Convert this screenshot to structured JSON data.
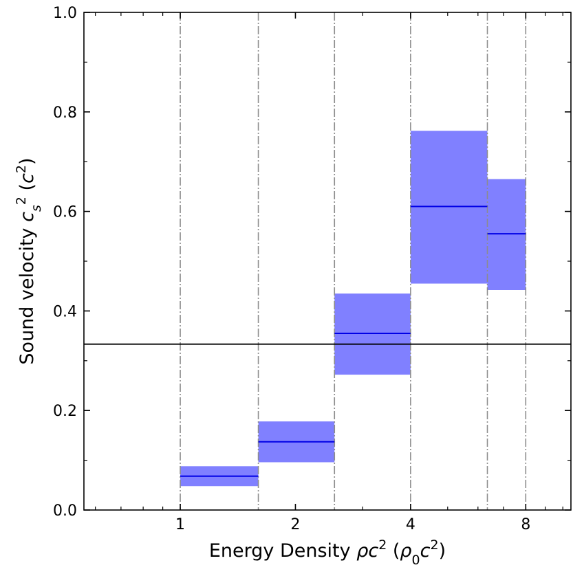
{
  "chart_data": {
    "type": "bar",
    "title": "",
    "xlabel": {
      "parts": [
        {
          "text": "Energy Density "
        },
        {
          "text": "ρc",
          "style": "italic"
        },
        {
          "text": "2",
          "sup": true
        },
        {
          "text": " ("
        },
        {
          "text": "ρ",
          "style": "italic"
        },
        {
          "text": "0",
          "sub": true
        },
        {
          "text": "c",
          "style": "italic"
        },
        {
          "text": "2",
          "sup": true
        },
        {
          "text": ")"
        }
      ]
    },
    "ylabel": {
      "parts": [
        {
          "text": "Sound velocity "
        },
        {
          "text": "c",
          "style": "italic"
        },
        {
          "text": "s",
          "sub": true,
          "style": "italic"
        },
        {
          "text": "2",
          "sup": true
        },
        {
          "text": " ("
        },
        {
          "text": "c",
          "style": "italic"
        },
        {
          "text": "2",
          "sup": true
        },
        {
          "text": ")"
        }
      ]
    },
    "x_scale": "log2",
    "xlim": [
      0.56,
      10.5
    ],
    "ylim": [
      0.0,
      1.0
    ],
    "x_ticks": [
      {
        "value": 1,
        "label": "1"
      },
      {
        "value": 2,
        "label": "2"
      },
      {
        "value": 4,
        "label": "4"
      },
      {
        "value": 8,
        "label": "8"
      }
    ],
    "y_ticks": [
      {
        "value": 0.0,
        "label": "0.0"
      },
      {
        "value": 0.2,
        "label": "0.2"
      },
      {
        "value": 0.4,
        "label": "0.4"
      },
      {
        "value": 0.6,
        "label": "0.6"
      },
      {
        "value": 0.8,
        "label": "0.8"
      },
      {
        "value": 1.0,
        "label": "1.0"
      }
    ],
    "bin_edges": [
      1.0,
      1.6,
      2.53,
      4.0,
      6.35,
      8.0
    ],
    "bins": [
      {
        "x_low": 1.0,
        "x_high": 1.6,
        "center": 0.068,
        "lower": 0.048,
        "upper": 0.088
      },
      {
        "x_low": 1.6,
        "x_high": 2.53,
        "center": 0.137,
        "lower": 0.096,
        "upper": 0.178
      },
      {
        "x_low": 2.53,
        "x_high": 4.0,
        "center": 0.355,
        "lower": 0.272,
        "upper": 0.435
      },
      {
        "x_low": 4.0,
        "x_high": 6.35,
        "center": 0.61,
        "lower": 0.455,
        "upper": 0.762
      },
      {
        "x_low": 6.35,
        "x_high": 8.0,
        "center": 0.555,
        "lower": 0.442,
        "upper": 0.665
      }
    ],
    "reference_line": {
      "y": 0.3333,
      "color": "#000000"
    },
    "colors": {
      "band_fill": "#8080ff",
      "median_line": "#0000e6",
      "bin_edge_line": "#8c8c8c",
      "axis": "#000000"
    },
    "grid": false,
    "legend": "none"
  }
}
